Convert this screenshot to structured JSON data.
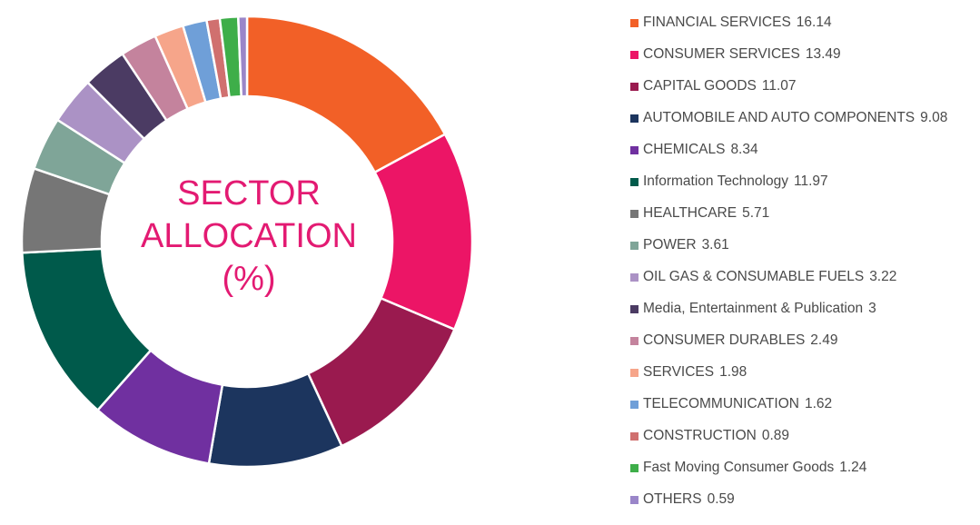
{
  "chart_data": {
    "type": "pie",
    "title_lines": [
      "SECTOR",
      "ALLOCATION",
      "(%)"
    ],
    "categories": [
      "FINANCIAL SERVICES",
      "CONSUMER SERVICES",
      "CAPITAL GOODS",
      "AUTOMOBILE AND AUTO COMPONENTS",
      "CHEMICALS",
      "Information Technology",
      "HEALTHCARE",
      "POWER",
      "OIL GAS & CONSUMABLE FUELS",
      "Media, Entertainment & Publication",
      "CONSUMER DURABLES",
      "SERVICES",
      "TELECOMMUNICATION",
      "CONSTRUCTION",
      "Fast Moving Consumer Goods",
      "OTHERS"
    ],
    "values": [
      16.14,
      13.49,
      11.07,
      9.08,
      8.34,
      11.97,
      5.71,
      3.61,
      3.22,
      3,
      2.49,
      1.98,
      1.62,
      0.89,
      1.24,
      0.59
    ],
    "value_labels": [
      "16.14",
      "13.49",
      "11.07",
      "9.08",
      "8.34",
      "11.97",
      "5.71",
      "3.61",
      "3.22",
      "3",
      "2.49",
      "1.98",
      "1.62",
      "0.89",
      "1.24",
      "0.59"
    ],
    "colors": [
      "#f26027",
      "#ec1566",
      "#9a1a4f",
      "#1c355e",
      "#7030a0",
      "#005a4b",
      "#767676",
      "#7fa598",
      "#ab92c5",
      "#4b3b63",
      "#c4839d",
      "#f6a58a",
      "#6f9fd8",
      "#d0706f",
      "#3eae49",
      "#9a86c9"
    ],
    "legend_position": "right",
    "donut": true
  }
}
